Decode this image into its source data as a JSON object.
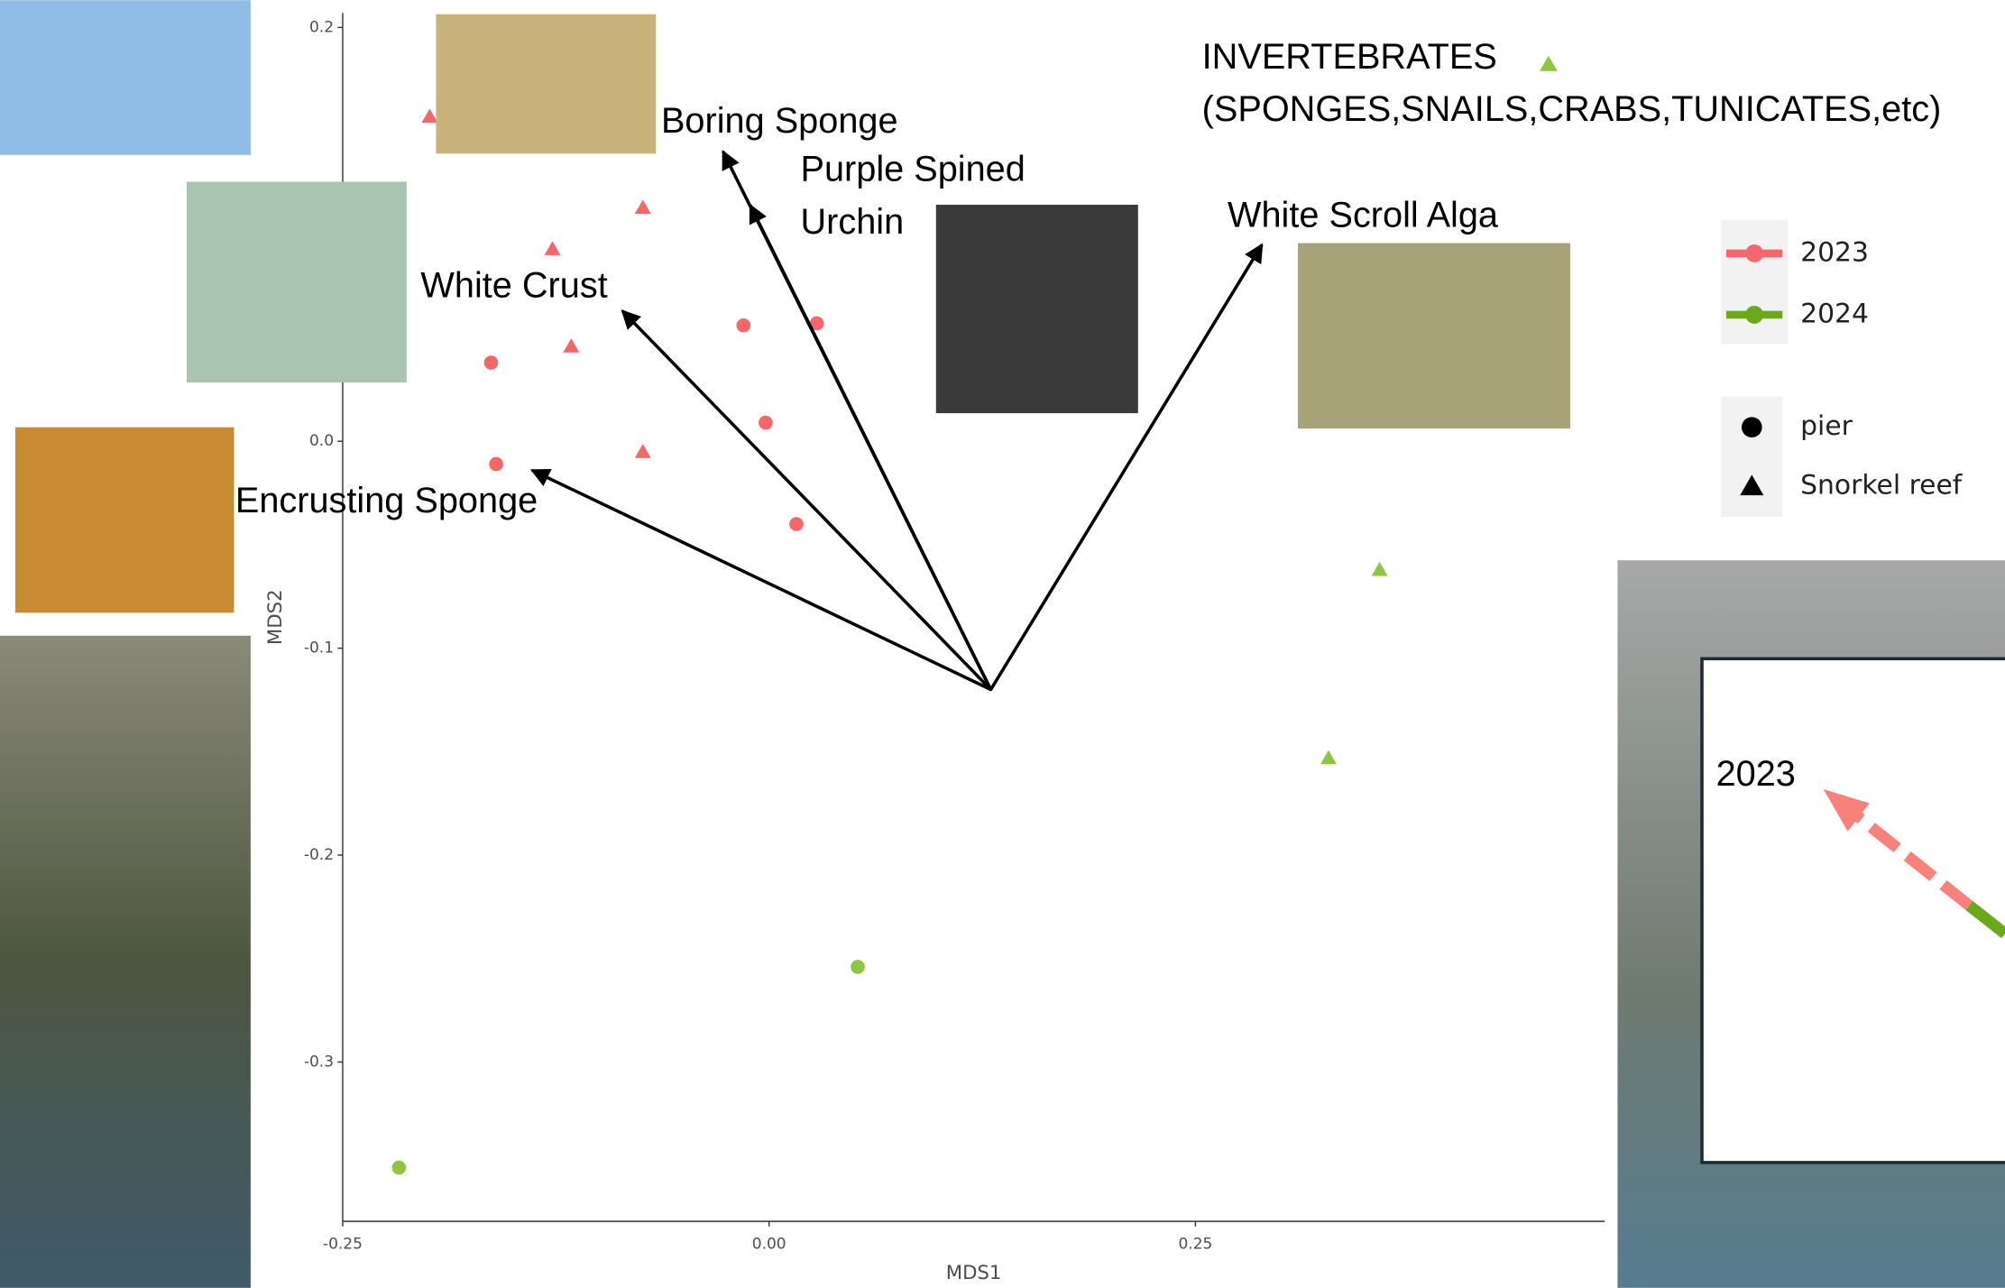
{
  "chart_data": {
    "type": "scatter",
    "xlabel": "MDS1",
    "ylabel": "MDS2",
    "xlim": [
      -0.25,
      0.49
    ],
    "ylim": [
      -0.377,
      0.207
    ],
    "xticks": [
      {
        "value": -0.25,
        "label": "-0.25"
      },
      {
        "value": 0,
        "label": "0.00"
      },
      {
        "value": 0.25,
        "label": "0.25"
      }
    ],
    "yticks": [
      0.2,
      {
        "value": 0,
        "label": "0.0"
      },
      -0.1,
      -0.2,
      -0.3
    ],
    "series": [
      {
        "color": "#f8666a",
        "shape": "circle",
        "x": [
          -0.163,
          -0.16,
          -0.015,
          0.028,
          -0.002,
          0.016
        ],
        "y": [
          0.038,
          -0.011,
          0.056,
          0.057,
          0.009,
          -0.04
        ]
      },
      {
        "color": "#f8666a",
        "shape": "triangle",
        "x": [
          -0.199,
          -0.074,
          -0.127,
          -0.116,
          -0.074
        ],
        "y": [
          0.157,
          0.113,
          0.093,
          0.046,
          -0.005
        ]
      },
      {
        "color": "#8dc63f",
        "shape": "circle",
        "x": [
          0.052,
          -0.217
        ],
        "y": [
          -0.254,
          -0.351
        ]
      },
      {
        "color": "#8dc63f",
        "shape": "triangle",
        "x": [
          0.358,
          0.328
        ],
        "y": [
          -0.062,
          -0.153
        ]
      }
    ],
    "arrow_origin": {
      "x": 0.13,
      "y": -0.12
    },
    "arrows": [
      {
        "lines": [
          "Encrusting Sponge"
        ],
        "x": -0.139,
        "y": -0.014
      },
      {
        "lines": [
          "White Crust"
        ],
        "x": -0.086,
        "y": 0.063
      },
      {
        "lines": [
          "Boring Sponge"
        ],
        "x": -0.027,
        "y": 0.14
      },
      {
        "lines": [
          "Purple Spined",
          "Urchin"
        ],
        "x": -0.011,
        "y": 0.114
      },
      {
        "lines": [
          "White Scroll Alga"
        ],
        "x": 0.289,
        "y": 0.095
      }
    ],
    "group_note": [
      "INVERTEBRATES",
      "(SPONGES,SNAILS,CRABS,TUNICATES,etc)"
    ],
    "group_note_color": "#8dc63f",
    "color_legend": [
      {
        "label": "2023",
        "color": "#f8666a"
      },
      {
        "label": "2024",
        "color": "#6aaa1a"
      }
    ],
    "shape_legend": [
      {
        "label": "pier",
        "shape": "circle"
      },
      {
        "label": "Snorkel reef",
        "shape": "triangle"
      }
    ],
    "inset_label": "2023"
  }
}
